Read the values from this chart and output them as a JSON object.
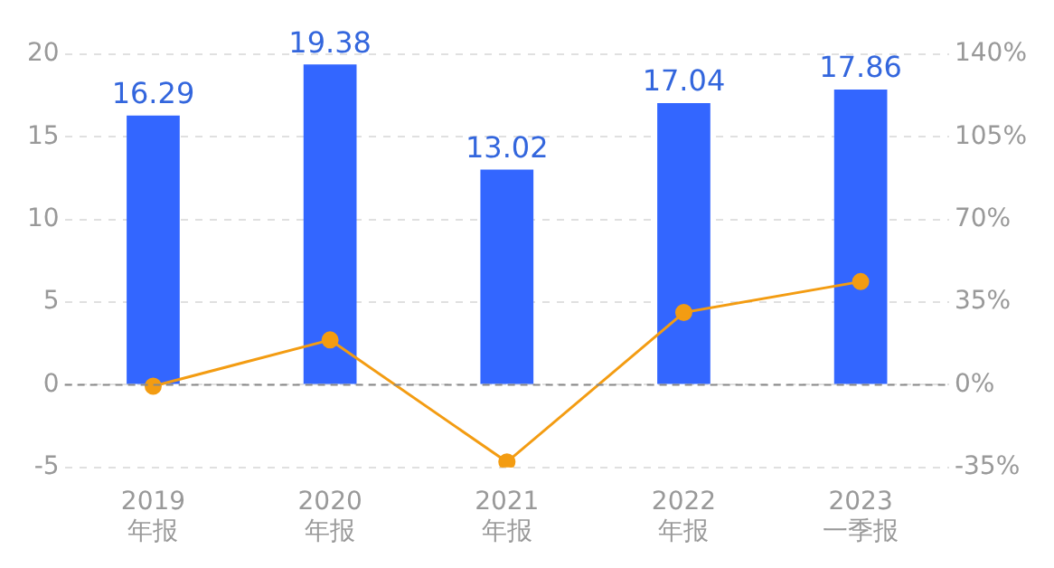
{
  "chart_data": {
    "type": "bar",
    "categories": [
      "2019\n年报",
      "2020\n年报",
      "2021\n年报",
      "2022\n年报",
      "2023\n一季报"
    ],
    "series": [
      {
        "color": "#3366ff",
        "values": [
          16.29,
          19.38,
          13.02,
          17.04,
          17.86
        ],
        "value_labels": [
          "16.29",
          "19.38",
          "13.02",
          "17.04",
          "17.86"
        ]
      },
      {
        "type": "line",
        "axis": "y2",
        "color": "#f39c12",
        "values": [
          -0.6,
          19,
          -32.7,
          30.6,
          43.7
        ],
        "marker": "circle"
      }
    ],
    "ylim": [
      -5,
      20
    ],
    "yticks": [
      -5,
      0,
      5,
      10,
      15,
      20
    ],
    "y2lim": [
      -35,
      140
    ],
    "y2ticks": [
      {
        "value": -35,
        "label": "-35%"
      },
      {
        "value": 0,
        "label": "0%"
      },
      {
        "value": 35,
        "label": "35%"
      },
      {
        "value": 70,
        "label": "70%"
      },
      {
        "value": 105,
        "label": "105%"
      },
      {
        "value": 140,
        "label": "140%"
      }
    ],
    "grid": "y",
    "legend": false,
    "ref_lines": [
      {
        "axis": "y",
        "value": 0,
        "color": "#888888",
        "line_style": "dashed"
      }
    ]
  }
}
